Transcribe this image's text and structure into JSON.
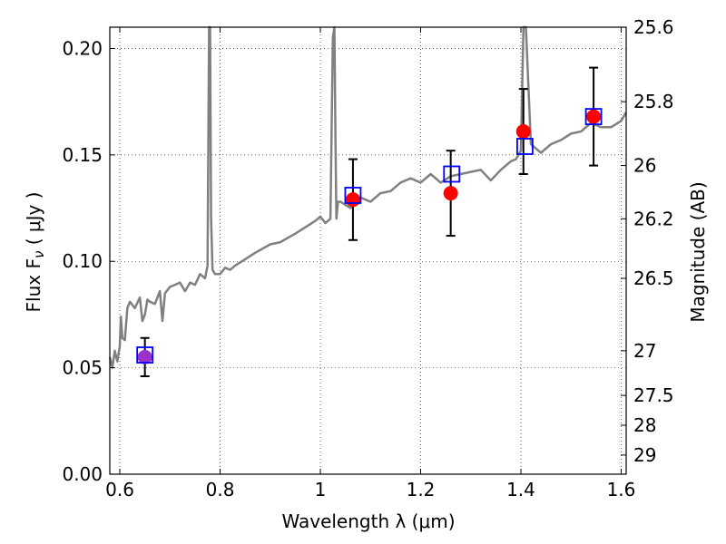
{
  "chart_data": {
    "type": "line",
    "xlabel": "Wavelength  λ (μm)",
    "ylabel": "Flux  F",
    "ylabel_subscript": "ν",
    "ylabel_unit": " ( μJy )",
    "y2label": "Magnitude (AB)",
    "xlim": [
      0.58,
      1.61
    ],
    "ylim": [
      0.0,
      0.21
    ],
    "grid": true,
    "x_ticks": [
      {
        "value": 0.6,
        "label": "0.6"
      },
      {
        "value": 0.8,
        "label": "0.8"
      },
      {
        "value": 1.0,
        "label": "1"
      },
      {
        "value": 1.2,
        "label": "1.2"
      },
      {
        "value": 1.4,
        "label": "1.4"
      },
      {
        "value": 1.6,
        "label": "1.6"
      }
    ],
    "y_ticks": [
      {
        "value": 0.0,
        "label": "0.00"
      },
      {
        "value": 0.05,
        "label": "0.05"
      },
      {
        "value": 0.1,
        "label": "0.10"
      },
      {
        "value": 0.15,
        "label": "0.15"
      },
      {
        "value": 0.2,
        "label": "0.20"
      }
    ],
    "y2_ticks": [
      {
        "flux": 0.21,
        "label": "25.6"
      },
      {
        "flux": 0.175,
        "label": "25.8"
      },
      {
        "flux": 0.145,
        "label": "26"
      },
      {
        "flux": 0.12,
        "label": "26.2"
      },
      {
        "flux": 0.092,
        "label": "26.5"
      },
      {
        "flux": 0.058,
        "label": "27"
      },
      {
        "flux": 0.037,
        "label": "27.5"
      },
      {
        "flux": 0.023,
        "label": "28"
      },
      {
        "flux": 0.009,
        "label": "29"
      }
    ],
    "spectrum": {
      "name": "model spectrum",
      "color": "#808080",
      "x": [
        0.58,
        0.585,
        0.59,
        0.595,
        0.6,
        0.602,
        0.605,
        0.61,
        0.615,
        0.62,
        0.63,
        0.64,
        0.645,
        0.65,
        0.655,
        0.66,
        0.67,
        0.68,
        0.685,
        0.69,
        0.7,
        0.71,
        0.72,
        0.73,
        0.74,
        0.75,
        0.76,
        0.77,
        0.775,
        0.778,
        0.78,
        0.782,
        0.785,
        0.79,
        0.8,
        0.81,
        0.82,
        0.83,
        0.85,
        0.87,
        0.9,
        0.92,
        0.95,
        0.97,
        0.99,
        1.0,
        1.01,
        1.02,
        1.025,
        1.028,
        1.03,
        1.032,
        1.035,
        1.04,
        1.06,
        1.08,
        1.1,
        1.12,
        1.14,
        1.16,
        1.18,
        1.2,
        1.22,
        1.24,
        1.26,
        1.28,
        1.3,
        1.32,
        1.34,
        1.36,
        1.38,
        1.39,
        1.4,
        1.405,
        1.41,
        1.42,
        1.44,
        1.46,
        1.48,
        1.5,
        1.52,
        1.54,
        1.56,
        1.58,
        1.6,
        1.61
      ],
      "y": [
        0.055,
        0.05,
        0.058,
        0.053,
        0.06,
        0.074,
        0.064,
        0.063,
        0.078,
        0.081,
        0.078,
        0.083,
        0.072,
        0.075,
        0.082,
        0.081,
        0.08,
        0.086,
        0.072,
        0.085,
        0.088,
        0.089,
        0.09,
        0.086,
        0.09,
        0.089,
        0.094,
        0.092,
        0.098,
        0.21,
        0.21,
        0.12,
        0.096,
        0.094,
        0.094,
        0.097,
        0.096,
        0.098,
        0.101,
        0.104,
        0.108,
        0.109,
        0.113,
        0.116,
        0.119,
        0.121,
        0.118,
        0.12,
        0.205,
        0.21,
        0.16,
        0.12,
        0.128,
        0.128,
        0.125,
        0.13,
        0.128,
        0.132,
        0.133,
        0.137,
        0.139,
        0.137,
        0.141,
        0.137,
        0.14,
        0.141,
        0.142,
        0.143,
        0.138,
        0.143,
        0.147,
        0.148,
        0.152,
        0.21,
        0.21,
        0.155,
        0.151,
        0.155,
        0.157,
        0.16,
        0.161,
        0.165,
        0.163,
        0.163,
        0.166,
        0.17
      ]
    },
    "photometry": {
      "name": "observed (red points with error bars)",
      "color": "#ff0000",
      "x": [
        0.65,
        1.065,
        1.26,
        1.405,
        1.545
      ],
      "y": [
        0.055,
        0.129,
        0.132,
        0.161,
        0.168
      ],
      "yerr": [
        0.009,
        0.019,
        0.02,
        0.02,
        0.023
      ]
    },
    "model_photometry": {
      "name": "model (blue squares)",
      "color": "#0000ff",
      "x": [
        0.65,
        1.065,
        1.262,
        1.408,
        1.545
      ],
      "y": [
        0.056,
        0.131,
        0.141,
        0.154,
        0.168
      ]
    },
    "magenta_color": "#9933cc"
  }
}
